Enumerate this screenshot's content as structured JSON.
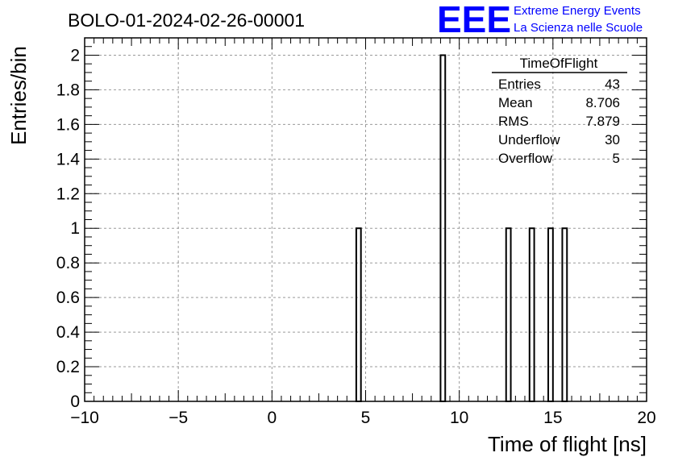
{
  "header": {
    "title": "BOLO-01-2024-02-26-00001"
  },
  "logo": {
    "mark": "EEE",
    "line1": "Extreme Energy Events",
    "line2": "La Scienza nelle Scuole",
    "color": "#0000ff"
  },
  "stats_box": {
    "name": "TimeOfFlight",
    "rows": [
      {
        "label": "Entries",
        "value": "43"
      },
      {
        "label": "Mean",
        "value": "8.706"
      },
      {
        "label": "RMS",
        "value": "7.879"
      },
      {
        "label": "Underflow",
        "value": "30"
      },
      {
        "label": "Overflow",
        "value": "5"
      }
    ]
  },
  "chart_data": {
    "type": "bar",
    "title": "BOLO-01-2024-02-26-00001",
    "xlabel": "Time of flight [ns]",
    "ylabel": "Entries/bin",
    "xlim": [
      -10,
      20
    ],
    "ylim": [
      0,
      2.1
    ],
    "grid": true,
    "bin_width": 0.25,
    "xticks": [
      -10,
      -5,
      0,
      5,
      10,
      15,
      20
    ],
    "yticks": [
      0,
      0.2,
      0.4,
      0.6,
      0.8,
      1,
      1.2,
      1.4,
      1.6,
      1.8,
      2
    ],
    "xtick_labels": [
      "−10",
      "−5",
      "0",
      "5",
      "10",
      "15",
      "20"
    ],
    "ytick_labels": [
      "0",
      "0.2",
      "0.4",
      "0.6",
      "0.8",
      "1",
      "1.2",
      "1.4",
      "1.6",
      "1.8",
      "2"
    ],
    "bins": [
      {
        "x_low": 4.5,
        "value": 1
      },
      {
        "x_low": 9.0,
        "value": 2
      },
      {
        "x_low": 12.5,
        "value": 1
      },
      {
        "x_low": 13.75,
        "value": 1
      },
      {
        "x_low": 14.75,
        "value": 1
      },
      {
        "x_low": 15.5,
        "value": 1
      }
    ]
  }
}
